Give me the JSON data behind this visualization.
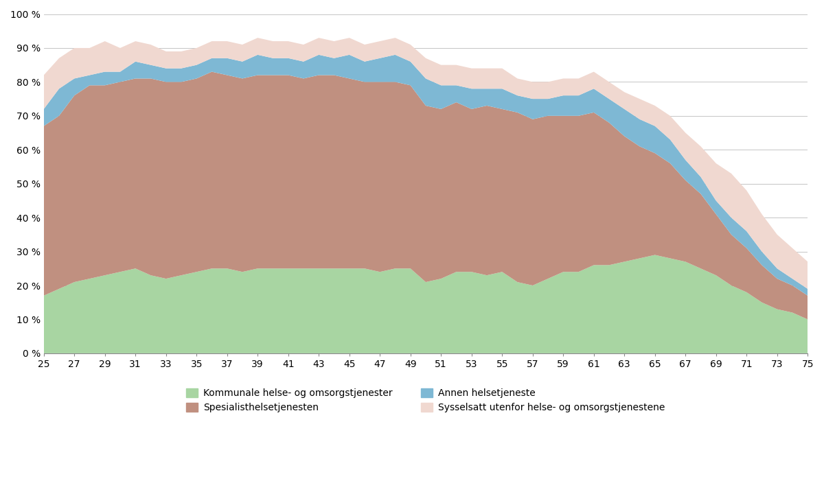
{
  "ages": [
    25,
    26,
    27,
    28,
    29,
    30,
    31,
    32,
    33,
    34,
    35,
    36,
    37,
    38,
    39,
    40,
    41,
    42,
    43,
    44,
    45,
    46,
    47,
    48,
    49,
    50,
    51,
    52,
    53,
    54,
    55,
    56,
    57,
    58,
    59,
    60,
    61,
    62,
    63,
    64,
    65,
    66,
    67,
    68,
    69,
    70,
    71,
    72,
    73,
    74,
    75
  ],
  "kommunale": [
    17,
    19,
    21,
    22,
    23,
    24,
    25,
    23,
    22,
    23,
    24,
    25,
    25,
    24,
    25,
    25,
    25,
    25,
    25,
    25,
    25,
    25,
    24,
    25,
    25,
    21,
    22,
    24,
    24,
    23,
    24,
    21,
    20,
    22,
    24,
    24,
    26,
    26,
    27,
    28,
    29,
    28,
    27,
    25,
    23,
    20,
    18,
    15,
    13,
    12,
    10
  ],
  "spesialist": [
    50,
    51,
    55,
    57,
    56,
    56,
    56,
    58,
    58,
    57,
    57,
    58,
    57,
    57,
    57,
    57,
    57,
    56,
    57,
    57,
    56,
    55,
    56,
    55,
    54,
    52,
    50,
    50,
    48,
    50,
    48,
    50,
    49,
    48,
    46,
    46,
    45,
    42,
    37,
    33,
    30,
    28,
    24,
    22,
    18,
    15,
    13,
    11,
    9,
    8,
    7
  ],
  "annen": [
    5,
    8,
    5,
    3,
    4,
    3,
    5,
    4,
    4,
    4,
    4,
    4,
    5,
    5,
    6,
    5,
    5,
    5,
    6,
    5,
    7,
    6,
    7,
    8,
    7,
    8,
    7,
    5,
    6,
    5,
    6,
    5,
    6,
    5,
    6,
    6,
    7,
    7,
    8,
    8,
    8,
    7,
    6,
    5,
    4,
    5,
    5,
    4,
    3,
    2,
    2
  ],
  "utenfor": [
    10,
    9,
    9,
    8,
    9,
    7,
    6,
    6,
    5,
    5,
    5,
    5,
    5,
    5,
    5,
    5,
    5,
    5,
    5,
    5,
    5,
    5,
    5,
    5,
    5,
    6,
    6,
    6,
    6,
    6,
    6,
    5,
    5,
    5,
    5,
    5,
    5,
    5,
    5,
    6,
    6,
    7,
    8,
    9,
    11,
    13,
    12,
    11,
    10,
    9,
    8
  ],
  "colors": {
    "kommunale": "#a8d5a2",
    "spesialist": "#c09080",
    "annen": "#7eb8d4",
    "utenfor": "#f0d8d0"
  },
  "legend_labels": [
    "Kommunale helse- og omsorgstjenester",
    "Spesialisthelsetjenesten",
    "Annen helsetjeneste",
    "Sysselsatt utenfor helse- og omsorgstjenestene"
  ],
  "xticks": [
    25,
    27,
    29,
    31,
    33,
    35,
    37,
    39,
    41,
    43,
    45,
    47,
    49,
    51,
    53,
    55,
    57,
    59,
    61,
    63,
    65,
    67,
    69,
    71,
    73,
    75
  ],
  "yticks": [
    0,
    10,
    20,
    30,
    40,
    50,
    60,
    70,
    80,
    90,
    100
  ],
  "ylabels": [
    "0 %",
    "10 %",
    "20 %",
    "30 %",
    "40 %",
    "50 %",
    "60 %",
    "70 %",
    "80 %",
    "90 %",
    "100 %"
  ],
  "background_color": "#ffffff"
}
